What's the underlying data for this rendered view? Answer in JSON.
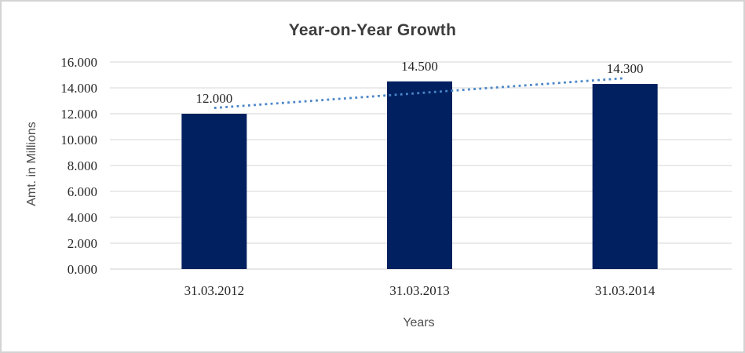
{
  "chart_data": {
    "type": "bar",
    "title": "Year-on-Year Growth",
    "xlabel": "Years",
    "ylabel": "Amt. in Millions",
    "categories": [
      "31.03.2012",
      "31.03.2013",
      "31.03.2014"
    ],
    "values": [
      12.0,
      14.5,
      14.3
    ],
    "value_labels": [
      "12.000",
      "14.500",
      "14.300"
    ],
    "y_ticks": {
      "values": [
        0,
        2,
        4,
        6,
        8,
        10,
        12,
        14,
        16
      ],
      "labels": [
        "0.000",
        "2.000",
        "4.000",
        "6.000",
        "8.000",
        "10.000",
        "12.000",
        "14.000",
        "16.000"
      ]
    },
    "ylim": [
      0,
      16
    ],
    "grid": true,
    "legend": "none",
    "trendline": {
      "type": "linear",
      "style": "dotted",
      "color": "#4a86c8"
    },
    "colors": {
      "bar": "#002060",
      "gridline": "#d6d6d6",
      "axis_line": "#cfcfcf",
      "title": "#3d3d3d",
      "labels": "#262626",
      "axis_titles": "#4f4f4f",
      "frame_border": "#d3d3d3"
    }
  }
}
